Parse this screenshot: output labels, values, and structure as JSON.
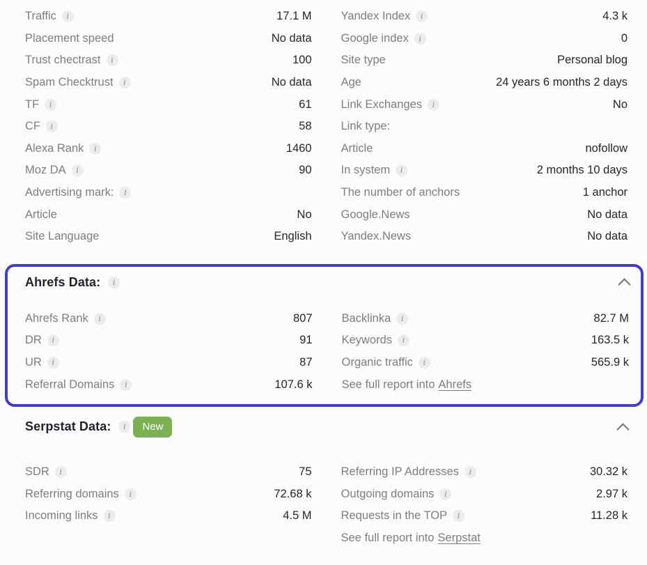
{
  "icons": {
    "info": "i"
  },
  "colors": {
    "accent": "#403fc4",
    "badge": "#7cb153",
    "chevron": "#71757d"
  },
  "general": {
    "left": [
      {
        "label": "Traffic",
        "value": "17.1 M"
      },
      {
        "label": "Placement speed",
        "value": "No data"
      },
      {
        "label": "Trust chectrast",
        "value": "100"
      },
      {
        "label": "Spam Checktrust",
        "value": "No data"
      },
      {
        "label": "TF",
        "value": "61"
      },
      {
        "label": "CF",
        "value": "58"
      },
      {
        "label": "Alexa Rank",
        "value": "1460"
      },
      {
        "label": "Moz DA",
        "value": "90"
      },
      {
        "label": "Advertising mark:",
        "value": ""
      },
      {
        "label": "Article",
        "value": "No"
      },
      {
        "label": "Site Language",
        "value": "English"
      }
    ],
    "right": [
      {
        "label": "Yandex Index",
        "value": "4.3 k"
      },
      {
        "label": "Google index",
        "value": "0"
      },
      {
        "label": "Site type",
        "value": "Personal blog"
      },
      {
        "label": "Age",
        "value": "24 years 6 months 2 days"
      },
      {
        "label": "Link Exchanges",
        "value": "No"
      },
      {
        "label": "Link type:",
        "value": ""
      },
      {
        "label": "Article",
        "value": "nofollow"
      },
      {
        "label": "In system",
        "value": "2 months 10 days"
      },
      {
        "label": "The number of anchors",
        "value": "1 anchor"
      },
      {
        "label": "Google.News",
        "value": "No data"
      },
      {
        "label": "Yandex.News",
        "value": "No data"
      }
    ]
  },
  "ahrefs": {
    "title": "Ahrefs Data:",
    "left": [
      {
        "label": "Ahrefs Rank",
        "value": "807"
      },
      {
        "label": "DR",
        "value": "91"
      },
      {
        "label": "UR",
        "value": "87"
      },
      {
        "label": "Referral Domains",
        "value": "107.6 k"
      }
    ],
    "right": [
      {
        "label": "Backlinka",
        "value": "82.7 M"
      },
      {
        "label": "Keywords",
        "value": "163.5 k"
      },
      {
        "label": "Organic traffic",
        "value": "565.9 k"
      }
    ],
    "report": {
      "prefix": "See full report into",
      "link": "Ahrefs"
    }
  },
  "serpstat": {
    "title": "Serpstat Data:",
    "badge": "New",
    "left": [
      {
        "label": "SDR",
        "value": "75"
      },
      {
        "label": "Referring domains",
        "value": "72.68 k"
      },
      {
        "label": "Incoming links",
        "value": "4.5 M"
      }
    ],
    "right": [
      {
        "label": "Referring IP Addresses",
        "value": "30.32 k"
      },
      {
        "label": "Outgoing domains",
        "value": "2.97 k"
      },
      {
        "label": "Requests in the TOP",
        "value": "11.28 k"
      }
    ],
    "report": {
      "prefix": "See full report into",
      "link": "Serpstat"
    }
  }
}
